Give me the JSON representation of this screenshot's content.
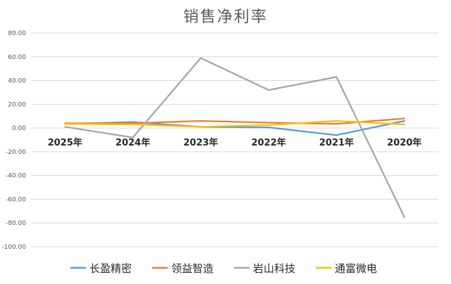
{
  "chart_data": {
    "type": "line",
    "title": "销售净利率",
    "categories": [
      "2025年",
      "2024年",
      "2023年",
      "2022年",
      "2021年",
      "2020年"
    ],
    "yticks": [
      "80.00",
      "60.00",
      "40.00",
      "20.00",
      "0.00",
      "-20.00",
      "-40.00",
      "-60.00",
      "-80.00",
      "-100.00"
    ],
    "ylim": [
      -100,
      80
    ],
    "grid": true,
    "legend_position": "bottom",
    "series": [
      {
        "name": "长盈精密",
        "color": "#5B9BD5",
        "values": [
          3.5,
          5.0,
          1.0,
          0.5,
          -6.0,
          6.0
        ]
      },
      {
        "name": "领益智造",
        "color": "#ED7D31",
        "values": [
          4.0,
          4.0,
          6.0,
          4.5,
          3.5,
          8.0
        ]
      },
      {
        "name": "岩山科技",
        "color": "#A5A5A5",
        "values": [
          1.0,
          -8.0,
          59.0,
          32.0,
          43.0,
          -75.0
        ]
      },
      {
        "name": "通富微电",
        "color": "#FFC000",
        "values": [
          3.5,
          3.0,
          1.0,
          2.5,
          6.0,
          3.0
        ]
      }
    ]
  }
}
